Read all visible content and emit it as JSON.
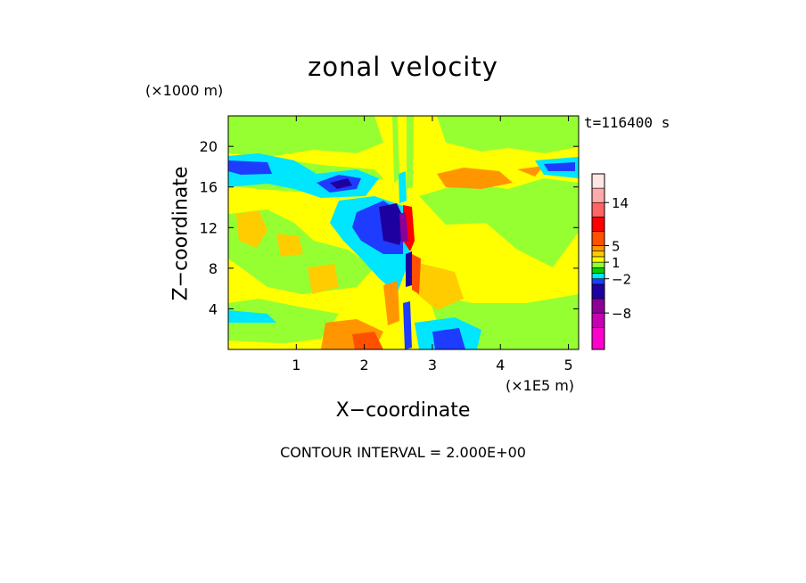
{
  "chart_data": {
    "type": "heatmap",
    "title": "zonal velocity",
    "xlabel": "X−coordinate",
    "ylabel": "Z−coordinate",
    "x_unit": "(×1E5 m)",
    "y_unit": "(×1000 m)",
    "time_label": "t=116400 s",
    "contour_interval_label": "CONTOUR INTERVAL = 2.000E+00",
    "xlim": [
      0,
      5.15
    ],
    "ylim": [
      0,
      23
    ],
    "x_ticks": [
      "1",
      "2",
      "3",
      "4",
      "5"
    ],
    "y_ticks": [
      "4",
      "8",
      "12",
      "16",
      "20"
    ],
    "colorbar": {
      "tick_labels": [
        "14",
        "5",
        "1",
        "−2",
        "−8"
      ],
      "levels": [
        {
          "color": "#ff00cc"
        },
        {
          "color": "#c800b4"
        },
        {
          "color": "#8c0096"
        },
        {
          "color": "#1e00a0"
        },
        {
          "color": "#1e3cff"
        },
        {
          "color": "#00e6ff"
        },
        {
          "color": "#00d200"
        },
        {
          "color": "#96ff32"
        },
        {
          "color": "#ffff00"
        },
        {
          "color": "#ffcc00"
        },
        {
          "color": "#ff9600"
        },
        {
          "color": "#ff5000"
        },
        {
          "color": "#ff0000"
        },
        {
          "color": "#ff6464"
        },
        {
          "color": "#ffaaaa"
        },
        {
          "color": "#ffe6e6"
        }
      ]
    }
  }
}
